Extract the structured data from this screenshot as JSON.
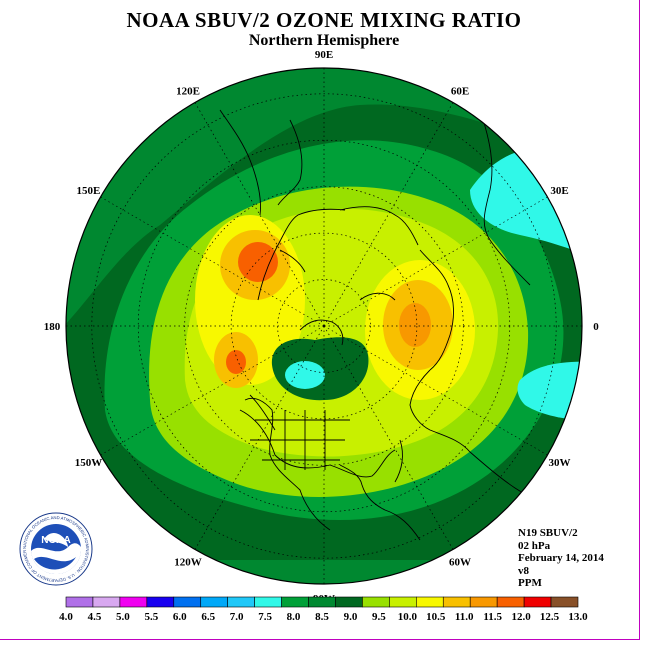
{
  "header": {
    "title": "NOAA SBUV/2 OZONE MIXING RATIO",
    "subtitle": "Northern Hemisphere"
  },
  "longitude_labels": [
    "90E",
    "60E",
    "30E",
    "0",
    "30W",
    "60W",
    "90W",
    "120W",
    "150W",
    "180",
    "150E",
    "120E"
  ],
  "info": {
    "satellite": "N19 SBUV/2",
    "level": "02 hPa",
    "date": "February 14, 2014",
    "version": "v8",
    "units": "PPM"
  },
  "logo": {
    "text": "NOAA",
    "ring_text": "NATIONAL OCEANIC AND ATMOSPHERIC ADMINISTRATION · U.S. DEPARTMENT OF COMMERCE"
  },
  "colorbar": {
    "ticks": [
      "4.0",
      "4.5",
      "5.0",
      "5.5",
      "6.0",
      "6.5",
      "7.0",
      "7.5",
      "8.0",
      "8.5",
      "9.0",
      "9.5",
      "10.0",
      "10.5",
      "11.0",
      "11.5",
      "12.0",
      "12.5",
      "13.0"
    ],
    "colors": [
      "#b070e8",
      "#d8a8f0",
      "#f000f0",
      "#1800f0",
      "#0070f0",
      "#00a8f8",
      "#20c8f8",
      "#30f8e8",
      "#00a038",
      "#008830",
      "#006820",
      "#98e000",
      "#c8f000",
      "#f8f800",
      "#f8c000",
      "#f89800",
      "#f86000",
      "#f00000",
      "#885028"
    ]
  },
  "palette": {
    "dark_green": "#006820",
    "mid_green": "#008830",
    "green": "#00a038",
    "light_green": "#98e000",
    "yellow_green": "#c8f000",
    "yellow": "#f8f800",
    "gold": "#f8c000",
    "orange": "#f89800",
    "red_orange": "#f86000",
    "cyan": "#30f8e8",
    "plum_frame": "#c000c0"
  }
}
